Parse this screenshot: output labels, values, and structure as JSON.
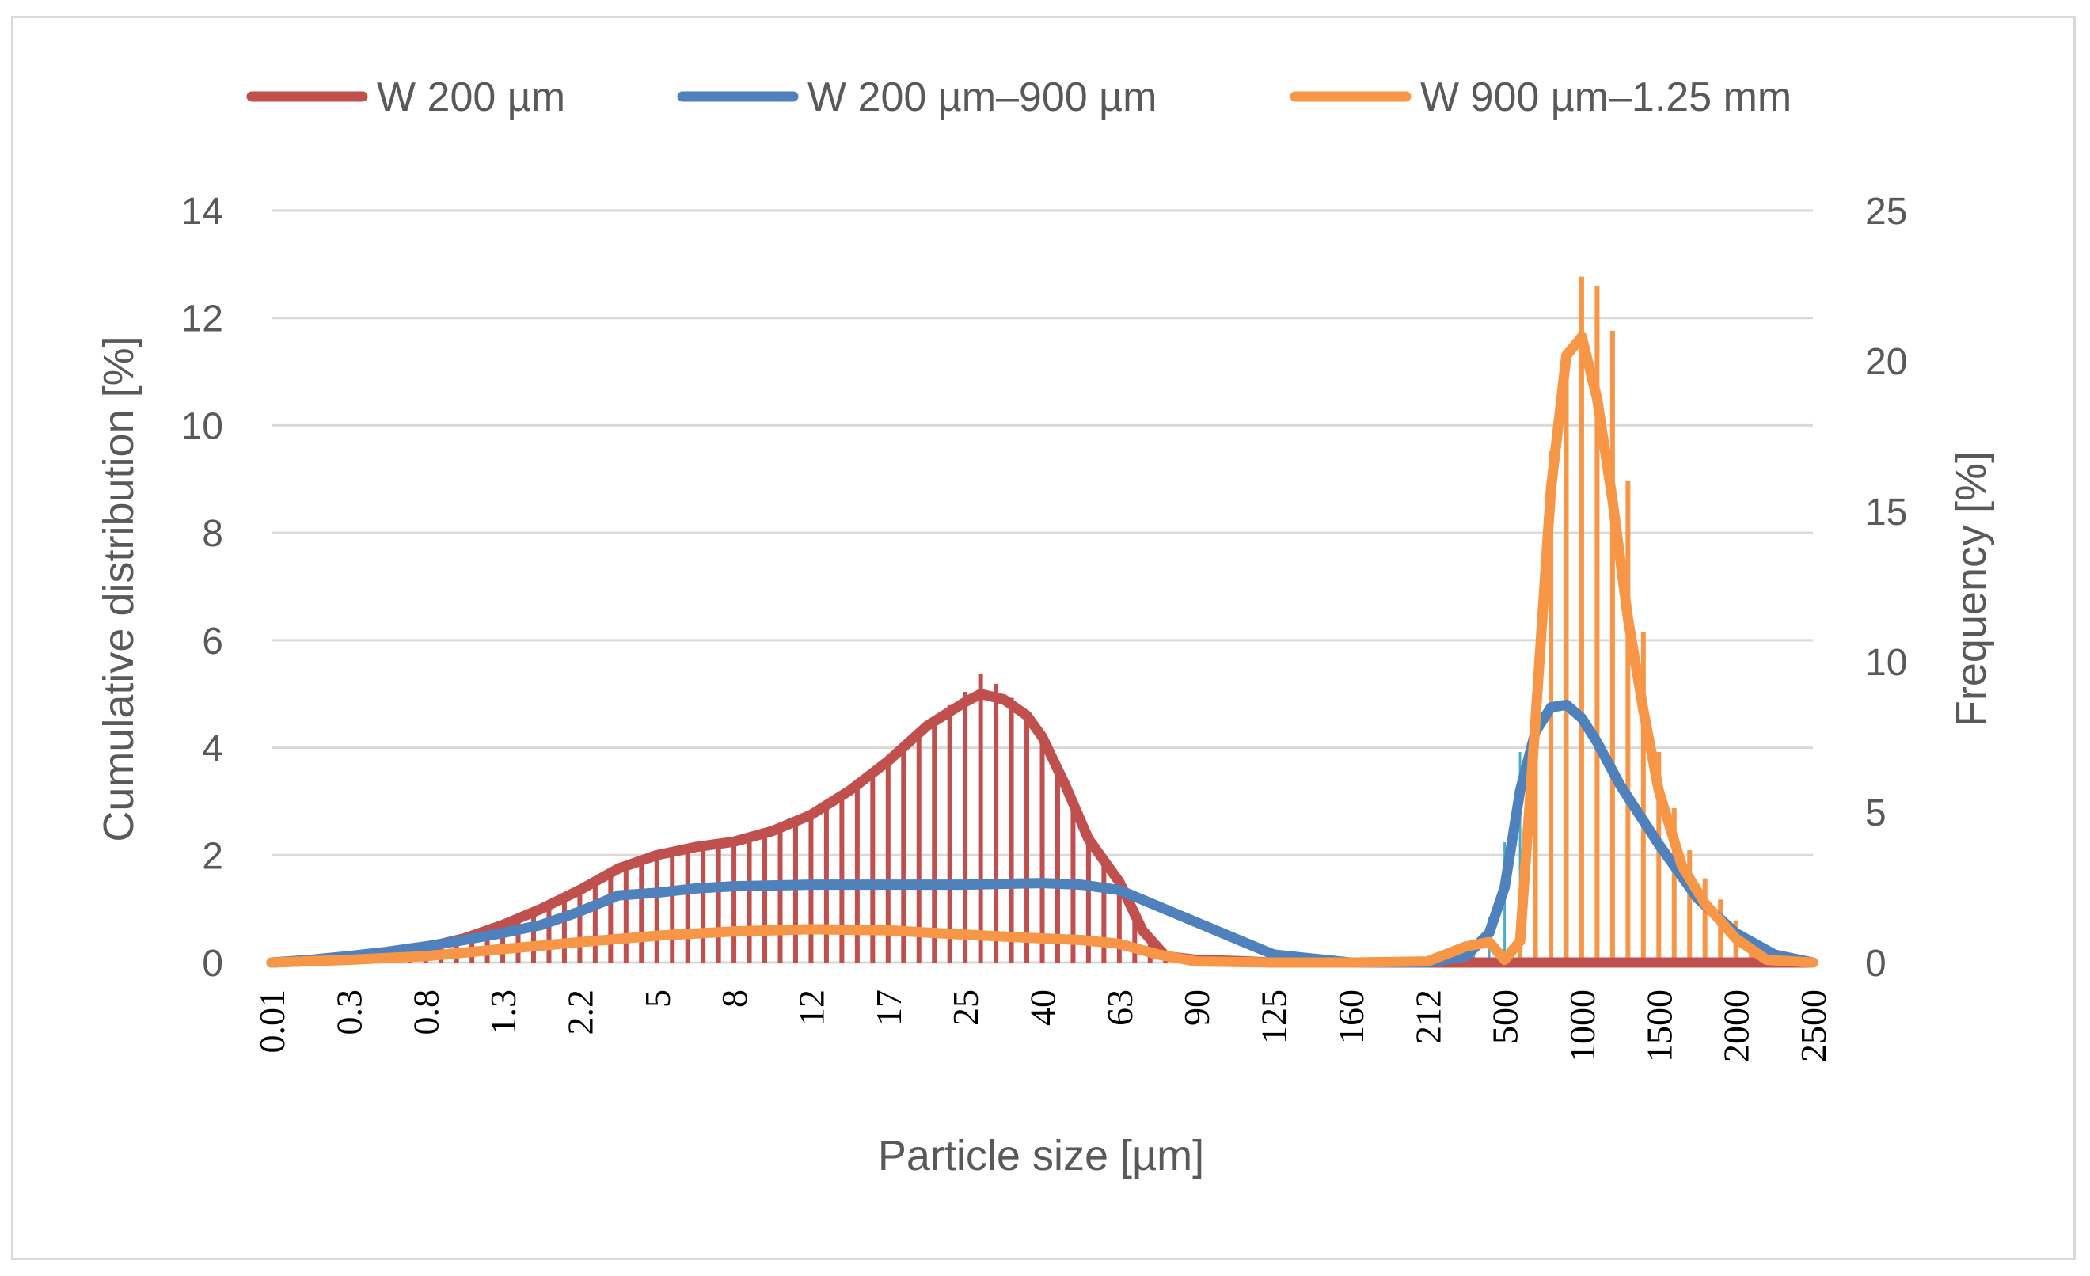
{
  "chart_data": {
    "type": "line",
    "title": "",
    "xlabel": "Particle size  [µm]",
    "ylabel_left": "Cumulative distribution [%]",
    "ylabel_right": "Frequency [%]",
    "ylim_left": [
      0,
      14
    ],
    "ylim_right": [
      0,
      25
    ],
    "yticks_left": [
      "0",
      "2",
      "4",
      "6",
      "8",
      "10",
      "12",
      "14"
    ],
    "yticks_right": [
      "0",
      "5",
      "10",
      "15",
      "20",
      "25"
    ],
    "categories": [
      "0.01",
      "0.3",
      "0.8",
      "1.3",
      "2.2",
      "5",
      "8",
      "12",
      "17",
      "25",
      "40",
      "63",
      "90",
      "125",
      "160",
      "212",
      "500",
      "1000",
      "1500",
      "2000",
      "2500"
    ],
    "grid": true,
    "legend_position": "top",
    "series": [
      {
        "name": "W 200 µm",
        "color": "#c0504d",
        "x": [
          0,
          0.5,
          1,
          1.5,
          2,
          2.5,
          3,
          3.5,
          4,
          4.5,
          5,
          5.5,
          6,
          6.5,
          7,
          7.5,
          8,
          8.5,
          9,
          9.2,
          9.5,
          9.8,
          10,
          10.3,
          10.6,
          11,
          11.3,
          11.6,
          12,
          12.5,
          13,
          14,
          15,
          16,
          17,
          18,
          19,
          20
        ],
        "cumulative": [
          0,
          0.03,
          0.1,
          0.18,
          0.28,
          0.45,
          0.7,
          1.0,
          1.35,
          1.75,
          2.0,
          2.15,
          2.25,
          2.45,
          2.75,
          3.2,
          3.75,
          4.4,
          4.85,
          5.0,
          4.9,
          4.6,
          4.2,
          3.3,
          2.3,
          1.5,
          0.6,
          0.12,
          0.05,
          0.03,
          0,
          0,
          0,
          0,
          0,
          0,
          0,
          0
        ],
        "frequency_bars": [
          0,
          0.05,
          0.2,
          0.35,
          0.5,
          0.85,
          1.3,
          1.85,
          2.5,
          3.15,
          3.6,
          3.8,
          4.0,
          4.4,
          5.0,
          5.8,
          6.8,
          7.9,
          9.0,
          9.6,
          9.1,
          8.2,
          7.4,
          5.8,
          4.2,
          2.6,
          1.2,
          0.3,
          0,
          0,
          0,
          0,
          0,
          0,
          0,
          0,
          0,
          0
        ]
      },
      {
        "name": "W 200 µm–900 µm",
        "color": "#4f81bd",
        "x": [
          0,
          0.5,
          1,
          1.5,
          2,
          2.5,
          3,
          3.5,
          4,
          4.5,
          5,
          5.5,
          6,
          7,
          8,
          9,
          10,
          10.5,
          11,
          11.5,
          12,
          12.5,
          13,
          14,
          15,
          15.5,
          15.8,
          16,
          16.2,
          16.4,
          16.6,
          16.8,
          17,
          17.2,
          17.5,
          18,
          18.5,
          19,
          19.5,
          20
        ],
        "cumulative": [
          0,
          0.05,
          0.12,
          0.2,
          0.3,
          0.42,
          0.55,
          0.7,
          0.95,
          1.25,
          1.3,
          1.38,
          1.42,
          1.45,
          1.45,
          1.45,
          1.48,
          1.45,
          1.35,
          1.05,
          0.75,
          0.45,
          0.15,
          0,
          0,
          0.12,
          0.55,
          1.4,
          3.2,
          4.3,
          4.75,
          4.8,
          4.55,
          4.1,
          3.3,
          2.2,
          1.2,
          0.55,
          0.15,
          0
        ],
        "frequency_bars": [
          0,
          0,
          0,
          0,
          0,
          0,
          0,
          0,
          0,
          0,
          0,
          0,
          0,
          0,
          0,
          0,
          0,
          0,
          0,
          0,
          0,
          0,
          0,
          0,
          0,
          0.3,
          1.5,
          4.0,
          7.0,
          9.0,
          9.6,
          9.6,
          2.5,
          0,
          0,
          0,
          0,
          0,
          0,
          0
        ]
      },
      {
        "name": "W 900 µm–1.25 mm",
        "color": "#f79646",
        "x": [
          0,
          1,
          2,
          3,
          4,
          5,
          6,
          7,
          8,
          9,
          10,
          10.5,
          11,
          11.5,
          12,
          13,
          14,
          15,
          15.5,
          15.8,
          16,
          16.2,
          16.4,
          16.6,
          16.8,
          17,
          17.2,
          17.4,
          17.6,
          17.8,
          18,
          18.3,
          18.6,
          19,
          19.4,
          20
        ],
        "cumulative": [
          0,
          0.05,
          0.12,
          0.25,
          0.38,
          0.5,
          0.58,
          0.62,
          0.6,
          0.52,
          0.45,
          0.42,
          0.35,
          0.15,
          0.02,
          0,
          0,
          0.02,
          0.3,
          0.38,
          0.05,
          0.4,
          4.5,
          8.8,
          11.3,
          11.65,
          10.5,
          8.6,
          6.4,
          4.7,
          3.2,
          1.8,
          1.1,
          0.45,
          0.05,
          0
        ],
        "frequency_bars": [
          0,
          0,
          0,
          0,
          0,
          0,
          0,
          0,
          0,
          0,
          0,
          0,
          0,
          0,
          0,
          0,
          0,
          0,
          0,
          0,
          0,
          0.8,
          8.5,
          17.0,
          20.0,
          22.8,
          22.5,
          21.0,
          16.0,
          11.0,
          7.0,
          4.2,
          2.8,
          1.4,
          0.3,
          0
        ]
      }
    ]
  }
}
